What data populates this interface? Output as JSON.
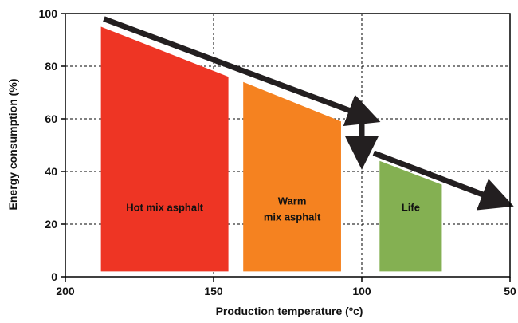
{
  "chart_data": {
    "type": "area",
    "title": "",
    "xlabel": "Production temperature (ºc)",
    "ylabel": "Energy consumption (%)",
    "xlim": [
      200,
      50
    ],
    "ylim": [
      0,
      100
    ],
    "x_ticks": [
      200,
      150,
      100,
      50
    ],
    "x_tick_labels": [
      "200",
      "150",
      "100",
      "50"
    ],
    "y_ticks": [
      0,
      20,
      40,
      60,
      80,
      100
    ],
    "y_tick_labels": [
      "0",
      "20",
      "40",
      "60",
      "80",
      "100"
    ],
    "grid": "dashed lines at x=150, x=100 and y=20, 40, 60, 80",
    "regions": [
      {
        "name": "Hot mix asphalt",
        "label_lines": [
          "Hot mix asphalt"
        ],
        "color": "#ee3524",
        "x_start": 188,
        "x_end": 145,
        "y_top_start": 95,
        "y_top_end": 76,
        "y_bottom": 2
      },
      {
        "name": "Warm mix asphalt",
        "label_lines": [
          "Warm",
          "mix asphalt"
        ],
        "color": "#f58220",
        "x_start": 140,
        "x_end": 107,
        "y_top_start": 74,
        "y_top_end": 59,
        "y_bottom": 2
      },
      {
        "name": "Life",
        "label_lines": [
          "Life"
        ],
        "color": "#84b052",
        "x_start": 94,
        "x_end": 73,
        "y_top_start": 44,
        "y_top_end": 35,
        "y_bottom": 2
      }
    ],
    "arrows": [
      {
        "from": [
          187,
          98
        ],
        "to": [
          99,
          61
        ],
        "direction": "descending trend"
      },
      {
        "from": [
          100,
          59
        ],
        "to": [
          100,
          47
        ],
        "direction": "down step"
      },
      {
        "from": [
          96,
          47
        ],
        "to": [
          54,
          29
        ],
        "direction": "descending trend"
      }
    ],
    "colors": {
      "arrow": "#231f20",
      "grid": "#000000",
      "axis": "#000000"
    }
  }
}
